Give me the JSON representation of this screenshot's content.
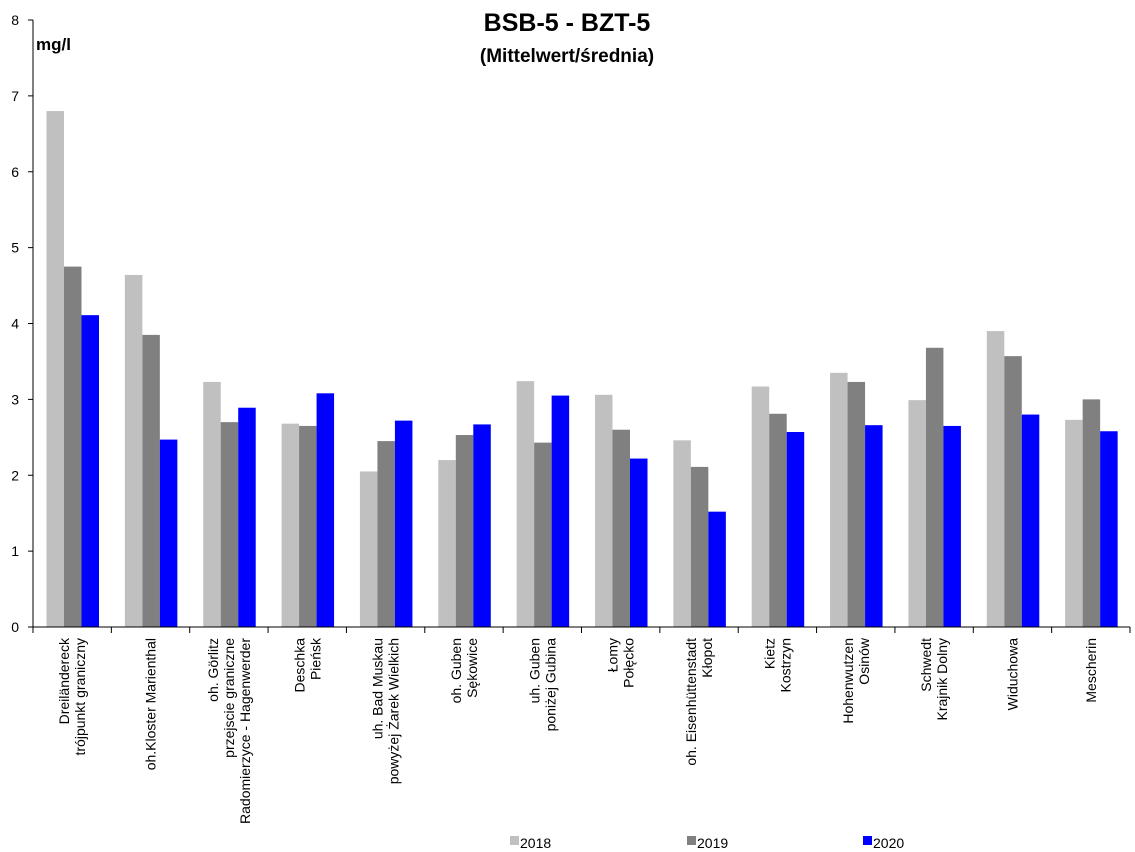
{
  "chart_data": {
    "type": "bar",
    "title": "BSB-5 - BZT-5",
    "subtitle": "(Mittelwert/średnia)",
    "ylabel": "mg/l",
    "xlabel": "",
    "ylim": [
      0,
      8
    ],
    "yticks": [
      0,
      1,
      2,
      3,
      4,
      5,
      6,
      7,
      8
    ],
    "grid": false,
    "legend_position": "bottom",
    "categories": [
      [
        "Dreiländereck",
        "trójpunkt graniczny"
      ],
      [
        "oh.Kloster Marienthal"
      ],
      [
        "oh. Görlitz",
        "przejscie graniczne",
        "Radomierzyce - Hagenwerder"
      ],
      [
        "Deschka",
        "Pieńsk"
      ],
      [
        "uh. Bad Muskau",
        "powyżej Żarek Wielkich"
      ],
      [
        "oh. Guben",
        "Sękowice"
      ],
      [
        "uh. Guben",
        "poniżej Gubina"
      ],
      [
        "Łomy",
        "Połęcko"
      ],
      [
        "oh. Eisenhüttenstadt",
        "Kłopot"
      ],
      [
        "Kietz",
        "Kostrzyn"
      ],
      [
        "Hohenwutzen",
        "Osinów"
      ],
      [
        "Schwedt",
        "Krajnik Dolny"
      ],
      [
        "Widuchowa"
      ],
      [
        "Mescherin"
      ]
    ],
    "series": [
      {
        "name": "2018",
        "color": "#c0c0c0",
        "values": [
          6.8,
          4.64,
          3.23,
          2.68,
          2.05,
          2.2,
          3.24,
          3.06,
          2.46,
          3.17,
          3.35,
          2.99,
          3.9,
          2.73
        ]
      },
      {
        "name": "2019",
        "color": "#808080",
        "values": [
          4.75,
          3.85,
          2.7,
          2.65,
          2.45,
          2.53,
          2.43,
          2.6,
          2.11,
          2.81,
          3.23,
          3.68,
          3.57,
          3.0
        ]
      },
      {
        "name": "2020",
        "color": "#0000ff",
        "values": [
          4.11,
          2.47,
          2.89,
          3.08,
          2.72,
          2.67,
          3.05,
          2.22,
          1.52,
          2.57,
          2.66,
          2.65,
          2.8,
          2.58
        ]
      }
    ]
  }
}
